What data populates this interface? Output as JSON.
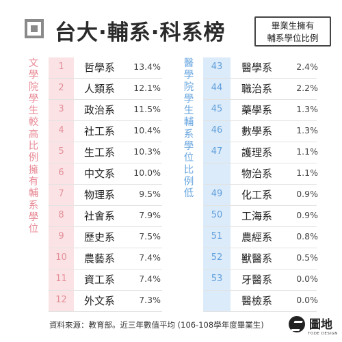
{
  "header": {
    "title": "台大·輔系·科系榜",
    "note_line1": "畢業生擁有",
    "note_line2": "輔系學位比例"
  },
  "left": {
    "label": "文學院學生較高比例擁有輔系學位",
    "color": "#e88a96",
    "rows": [
      {
        "rank": "1",
        "dept": "哲學系",
        "pct": "13.4%"
      },
      {
        "rank": "2",
        "dept": "人類系",
        "pct": "12.1%"
      },
      {
        "rank": "3",
        "dept": "政治系",
        "pct": "11.5%"
      },
      {
        "rank": "4",
        "dept": "社工系",
        "pct": "10.4%"
      },
      {
        "rank": "5",
        "dept": "生工系",
        "pct": "10.3%"
      },
      {
        "rank": "6",
        "dept": "中文系",
        "pct": "10.0%"
      },
      {
        "rank": "7",
        "dept": "物理系",
        "pct": "9.5%"
      },
      {
        "rank": "8",
        "dept": "社會系",
        "pct": "7.9%"
      },
      {
        "rank": "9",
        "dept": "歷史系",
        "pct": "7.5%"
      },
      {
        "rank": "10",
        "dept": "農藝系",
        "pct": "7.4%"
      },
      {
        "rank": "11",
        "dept": "資工系",
        "pct": "7.4%"
      },
      {
        "rank": "12",
        "dept": "外文系",
        "pct": "7.3%"
      }
    ]
  },
  "right": {
    "label": "醫學院學生輔系學位比例低",
    "color": "#6aa7e0",
    "rows": [
      {
        "rank": "43",
        "dept": "醫學系",
        "pct": "2.4%"
      },
      {
        "rank": "44",
        "dept": "職治系",
        "pct": "2.2%"
      },
      {
        "rank": "45",
        "dept": "藥學系",
        "pct": "1.3%"
      },
      {
        "rank": "46",
        "dept": "數學系",
        "pct": "1.3%"
      },
      {
        "rank": "47",
        "dept": "護理系",
        "pct": "1.1%"
      },
      {
        "rank": "",
        "dept": "物治系",
        "pct": "1.1%"
      },
      {
        "rank": "49",
        "dept": "化工系",
        "pct": "0.9%"
      },
      {
        "rank": "50",
        "dept": "工海系",
        "pct": "0.9%"
      },
      {
        "rank": "51",
        "dept": "農經系",
        "pct": "0.8%"
      },
      {
        "rank": "52",
        "dept": "獸醫系",
        "pct": "0.5%"
      },
      {
        "rank": "53",
        "dept": "牙醫系",
        "pct": "0.0%"
      },
      {
        "rank": "",
        "dept": "醫檢系",
        "pct": "0.0%"
      }
    ]
  },
  "footer": {
    "source": "資料來源：教育部。近三年數值平均 (106-108學年度畢業生)",
    "logo_text": "圖地",
    "logo_sub": "TODE DESIGN",
    "logo_icon": "tode-logo-icon"
  }
}
